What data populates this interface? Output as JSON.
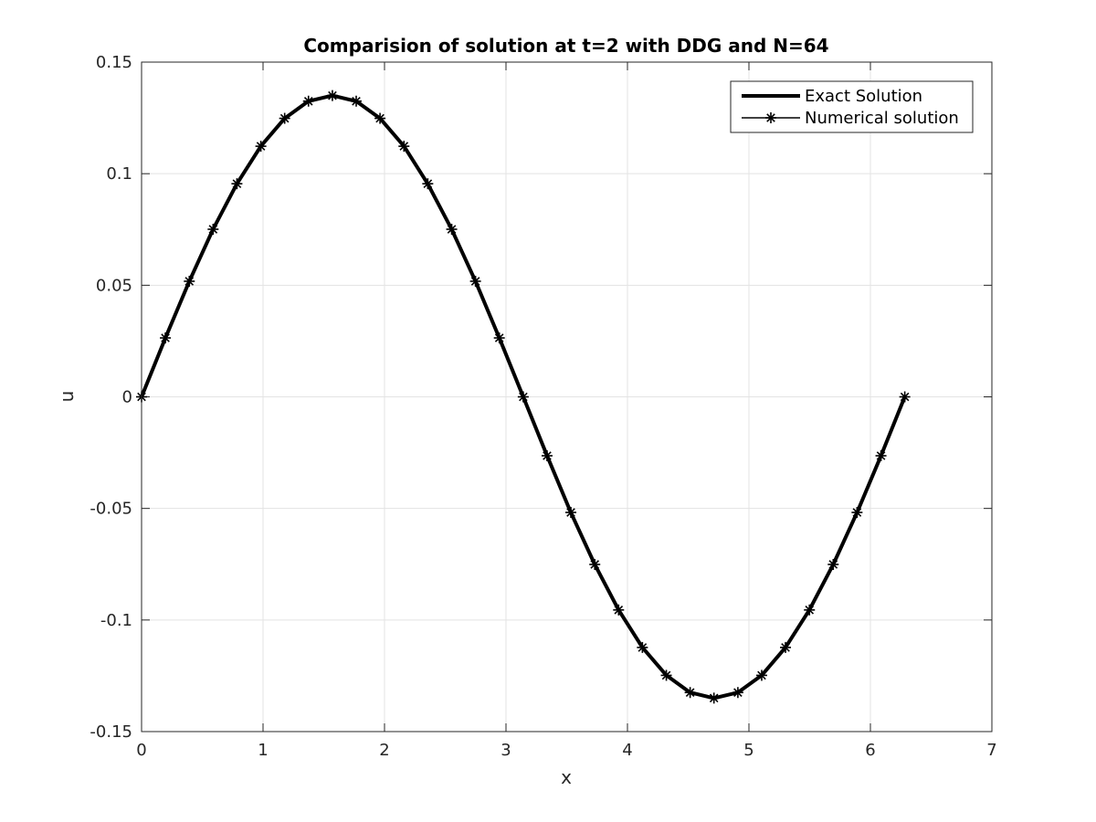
{
  "chart_data": {
    "type": "line",
    "title": "Comparision of solution at t=2 with DDG and N=64",
    "xlabel": "x",
    "ylabel": "u",
    "xlim": [
      0,
      7
    ],
    "ylim": [
      -0.15,
      0.15
    ],
    "x_ticks": [
      0,
      1,
      2,
      3,
      4,
      5,
      6,
      7
    ],
    "y_ticks": [
      -0.15,
      -0.1,
      -0.05,
      0,
      0.05,
      0.1,
      0.15
    ],
    "x_tick_labels": [
      "0",
      "1",
      "2",
      "3",
      "4",
      "5",
      "6",
      "7"
    ],
    "y_tick_labels": [
      "-0.15",
      "-0.1",
      "-0.05",
      "0",
      "0.05",
      "0.1",
      "0.15"
    ],
    "grid": true,
    "legend_position": "top-right",
    "x": [
      0,
      0.196,
      0.393,
      0.589,
      0.785,
      0.982,
      1.178,
      1.374,
      1.571,
      1.767,
      1.963,
      2.16,
      2.356,
      2.553,
      2.749,
      2.945,
      3.142,
      3.338,
      3.534,
      3.731,
      3.927,
      4.123,
      4.32,
      4.516,
      4.712,
      4.909,
      5.105,
      5.301,
      5.498,
      5.694,
      5.89,
      6.087,
      6.283
    ],
    "series": [
      {
        "name": "Exact Solution",
        "color": "#000000",
        "marker": "none",
        "values": [
          0,
          0.0264,
          0.0518,
          0.0751,
          0.0955,
          0.1123,
          0.1248,
          0.1325,
          0.135,
          0.1325,
          0.1248,
          0.1123,
          0.0955,
          0.0751,
          0.0518,
          0.0264,
          0,
          -0.0264,
          -0.0518,
          -0.0751,
          -0.0955,
          -0.1123,
          -0.1248,
          -0.1325,
          -0.135,
          -0.1325,
          -0.1248,
          -0.1123,
          -0.0955,
          -0.0751,
          -0.0518,
          -0.0264,
          0
        ]
      },
      {
        "name": "Numerical solution",
        "color": "#000000",
        "marker": "asterisk",
        "values": [
          0,
          0.0264,
          0.0518,
          0.0751,
          0.0955,
          0.1123,
          0.1248,
          0.1325,
          0.135,
          0.1325,
          0.1248,
          0.1123,
          0.0955,
          0.0751,
          0.0518,
          0.0264,
          0,
          -0.0264,
          -0.0518,
          -0.0751,
          -0.0955,
          -0.1123,
          -0.1248,
          -0.1325,
          -0.135,
          -0.1325,
          -0.1248,
          -0.1123,
          -0.0955,
          -0.0751,
          -0.0518,
          -0.0264,
          0
        ]
      }
    ]
  }
}
